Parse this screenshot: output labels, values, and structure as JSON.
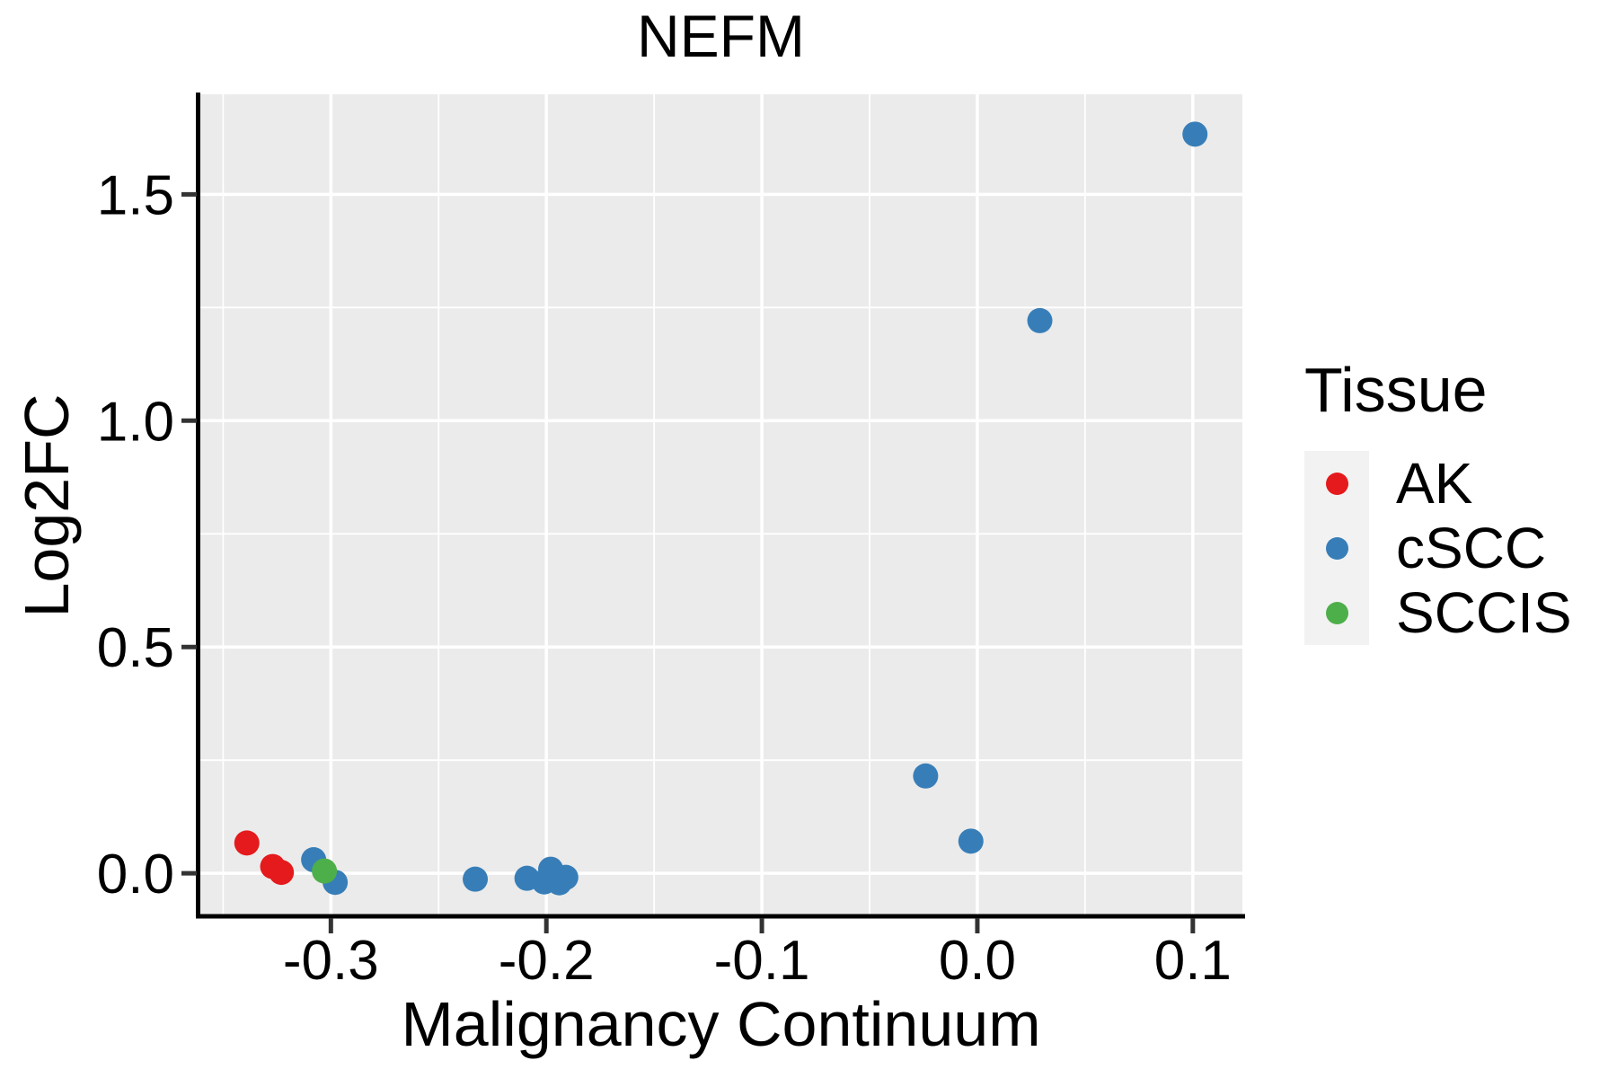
{
  "chart": {
    "title": "NEFM",
    "xlabel": "Malignancy Continuum",
    "ylabel": "Log2FC",
    "legend": {
      "title": "Tissue"
    }
  },
  "chart_data": {
    "type": "scatter",
    "title": "NEFM",
    "xlabel": "Malignancy Continuum",
    "ylabel": "Log2FC",
    "xlim": [
      -0.361,
      0.123
    ],
    "ylim": [
      -0.095,
      1.721
    ],
    "x_ticks": [
      -0.3,
      -0.2,
      -0.1,
      0.0,
      0.1
    ],
    "x_tick_labels": [
      "-0.3",
      "-0.2",
      "-0.1",
      "0.0",
      "0.1"
    ],
    "x_minor_ticks": [
      -0.35,
      -0.25,
      -0.15,
      -0.05,
      0.05
    ],
    "y_ticks": [
      0.0,
      0.5,
      1.0,
      1.5
    ],
    "y_tick_labels": [
      "0.0",
      "0.5",
      "1.0",
      "1.5"
    ],
    "y_minor_ticks": [
      0.25,
      0.75,
      1.25
    ],
    "grid": "white major and minor gridlines on gray panel",
    "legend_title": "Tissue",
    "legend_position": "right",
    "series": [
      {
        "name": "AK",
        "color": "#E41A1C",
        "points": [
          [
            -0.339,
            0.067
          ],
          [
            -0.327,
            0.015
          ],
          [
            -0.323,
            0.002
          ]
        ]
      },
      {
        "name": "cSCC",
        "color": "#377EB8",
        "points": [
          [
            -0.308,
            0.03
          ],
          [
            -0.298,
            -0.02
          ],
          [
            -0.233,
            -0.013
          ],
          [
            -0.209,
            -0.011
          ],
          [
            -0.201,
            -0.019
          ],
          [
            -0.198,
            0.009
          ],
          [
            -0.194,
            -0.021
          ],
          [
            -0.191,
            -0.009
          ],
          [
            -0.024,
            0.215
          ],
          [
            -0.003,
            0.071
          ],
          [
            0.029,
            1.221
          ],
          [
            0.101,
            1.633
          ]
        ]
      },
      {
        "name": "SCCIS",
        "color": "#4DAF4A",
        "points": [
          [
            -0.303,
            0.005
          ]
        ]
      }
    ]
  },
  "style_colors": {
    "panel_background": "#EBEBEB",
    "gridline": "#FFFFFF",
    "axis_spine": "#000000",
    "tick_mark": "#333333",
    "legend_key_background": "#F2F2F2",
    "ak_red": "#E41A1C",
    "cscc_blue": "#377EB8",
    "sccis_green": "#4DAF4A"
  }
}
